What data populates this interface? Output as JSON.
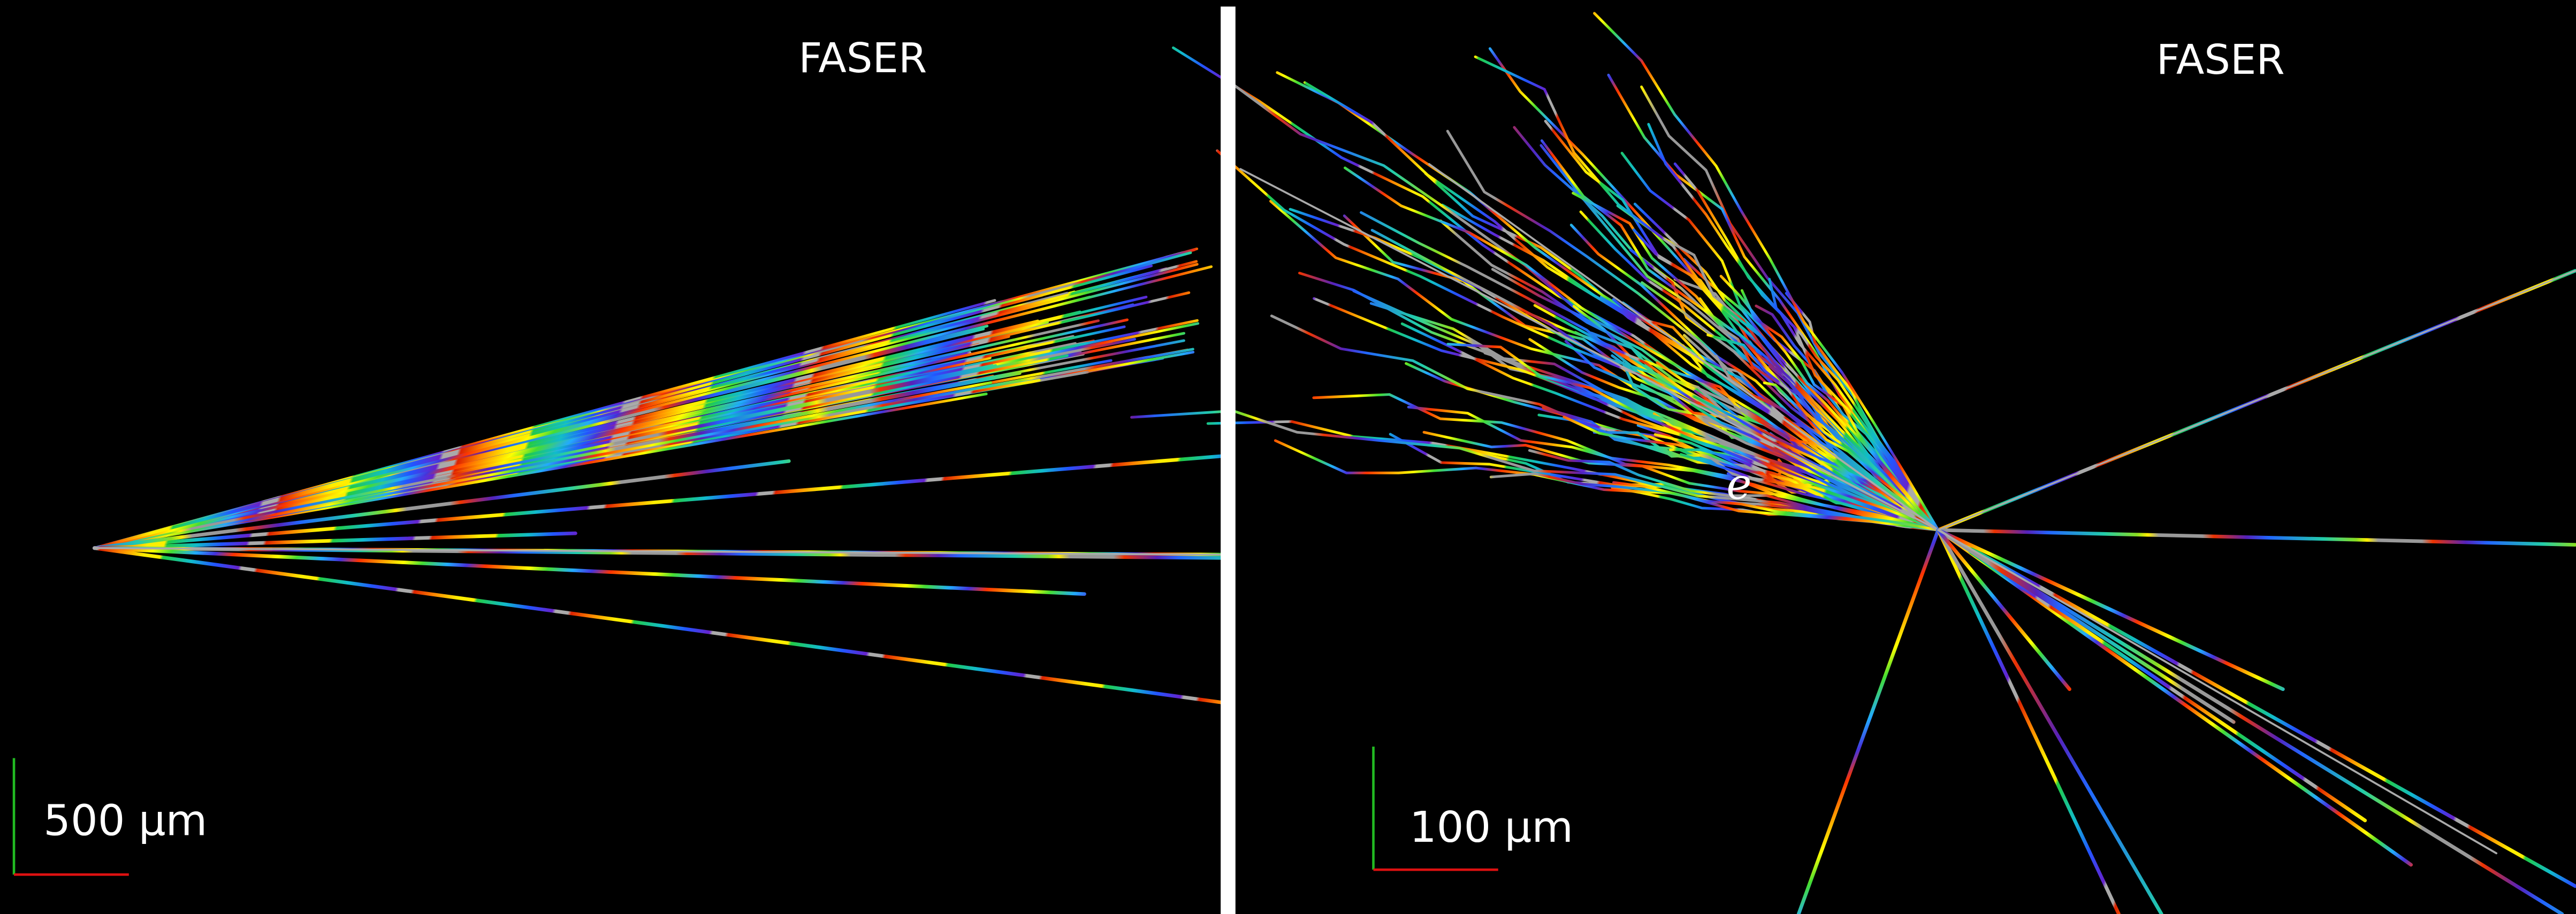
{
  "left_panel": {
    "label": "FASER",
    "scale": "500 μm"
  },
  "right_panel": {
    "label": "FASER",
    "scale": "100 μm",
    "particle": "e"
  }
}
